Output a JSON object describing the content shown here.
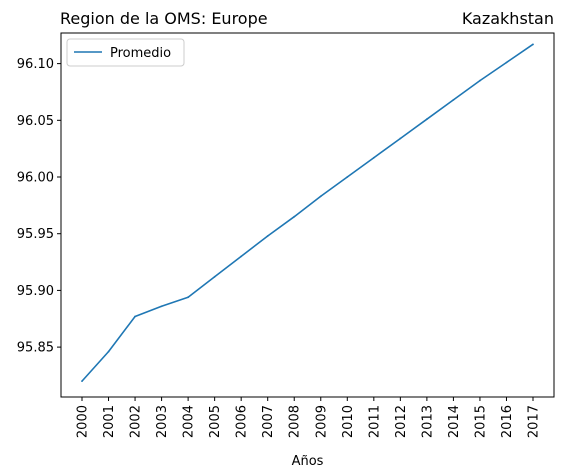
{
  "chart_data": {
    "type": "line",
    "title_left": "Region de la OMS: Europe",
    "title_right": "Kazakhstan",
    "xlabel": "Años",
    "ylabel": "",
    "x": [
      "2000",
      "2001",
      "2002",
      "2003",
      "2004",
      "2005",
      "2006",
      "2007",
      "2008",
      "2009",
      "2010",
      "2011",
      "2012",
      "2013",
      "2014",
      "2015",
      "2016",
      "2017"
    ],
    "series": [
      {
        "name": "Promedio",
        "color": "#1f77b4",
        "values": [
          95.82,
          95.846,
          95.877,
          95.886,
          95.894,
          95.912,
          95.93,
          95.948,
          95.965,
          95.983,
          96.0,
          96.017,
          96.034,
          96.051,
          96.068,
          96.085,
          96.101,
          96.117
        ]
      }
    ],
    "ylim": [
      95.806,
      96.127
    ],
    "yticks": [
      95.85,
      95.9,
      95.95,
      96.0,
      96.05,
      96.1
    ],
    "ytick_labels": [
      "95.85",
      "95.90",
      "95.95",
      "96.00",
      "96.05",
      "96.10"
    ],
    "grid": false,
    "legend_position": "upper-left"
  }
}
